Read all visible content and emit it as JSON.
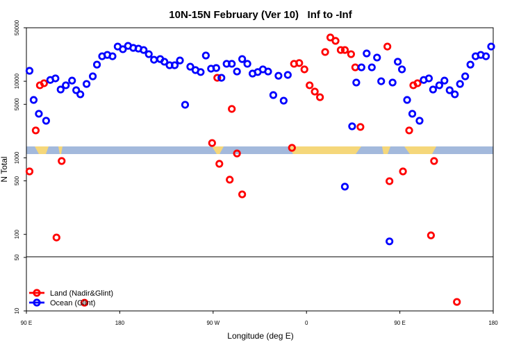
{
  "chart_data": {
    "type": "scatter",
    "title": "10N-15N February (Ver 10)   Inf to -Inf",
    "x_label": "Longitude (deg E)",
    "y_label": "N Total",
    "log_y": true,
    "legend": "bottom-left",
    "xlim": [
      90,
      540
    ],
    "ylim": [
      10,
      50000
    ],
    "xticks": [
      {
        "value": 90,
        "label": "90 E"
      },
      {
        "value": 180,
        "label": "180"
      },
      {
        "value": 270,
        "label": "90 W"
      },
      {
        "value": 360,
        "label": "0"
      },
      {
        "value": 450,
        "label": "90 E"
      },
      {
        "value": 540,
        "label": "180"
      }
    ],
    "yticks": [
      10,
      50,
      100,
      500,
      1000,
      5000,
      10000,
      50000
    ],
    "series": [
      {
        "name": "Land (Nadir&Glint)",
        "color": "#ff0000",
        "x": [
          93,
          99,
          103,
          107,
          119,
          124,
          146,
          269,
          274,
          276,
          286,
          288,
          293,
          298,
          346,
          348,
          353,
          358,
          363,
          368,
          373,
          378,
          383,
          388,
          393,
          397,
          403,
          407,
          412,
          438,
          440,
          453,
          459,
          463,
          467,
          480,
          483,
          505
        ],
        "values": [
          664,
          2280,
          8850,
          9420,
          91,
          908,
          12.8,
          1560,
          11100,
          835,
          518,
          4350,
          1140,
          333,
          1350,
          16900,
          17300,
          14300,
          8850,
          7330,
          6190,
          24100,
          37300,
          33700,
          25600,
          25600,
          22600,
          15200,
          2530,
          28400,
          495,
          664,
          2280,
          8850,
          9420,
          97,
          908,
          13.1
        ]
      },
      {
        "name": "Ocean (Glint)",
        "color": "#0000ff",
        "x": [
          93,
          97,
          102,
          109,
          113,
          118,
          123,
          128,
          134,
          138,
          142,
          148,
          154,
          158,
          163,
          168,
          173,
          178,
          183,
          188,
          193,
          198,
          203,
          208,
          213,
          219,
          223,
          228,
          233,
          238,
          243,
          248,
          253,
          258,
          263,
          268,
          273,
          278,
          283,
          288,
          293,
          298,
          303,
          308,
          313,
          318,
          323,
          328,
          333,
          338,
          342,
          397,
          404,
          408,
          413,
          418,
          423,
          428,
          432,
          440,
          443,
          448,
          452,
          457,
          462,
          469,
          473,
          478,
          482,
          488,
          493,
          498,
          503,
          508,
          513,
          518,
          523,
          528,
          533,
          538
        ],
        "values": [
          13700,
          5700,
          3760,
          3050,
          10400,
          10900,
          7800,
          8850,
          10200,
          7640,
          6750,
          9220,
          11600,
          16500,
          21200,
          22100,
          21200,
          28400,
          26200,
          29000,
          27300,
          26700,
          25600,
          22600,
          19100,
          19500,
          18000,
          16200,
          16200,
          18700,
          4930,
          15500,
          14000,
          13200,
          21700,
          14600,
          14900,
          11100,
          16900,
          16900,
          13400,
          19500,
          16900,
          12600,
          13200,
          14300,
          13400,
          6600,
          11800,
          5580,
          12100,
          420,
          2580,
          9620,
          15200,
          23100,
          15200,
          20400,
          10000,
          81,
          9620,
          18000,
          14300,
          5700,
          3760,
          3050,
          10400,
          10900,
          7800,
          8850,
          10200,
          7640,
          6750,
          9220,
          11600,
          16500,
          21200,
          22100,
          21200,
          28400
        ]
      }
    ]
  }
}
